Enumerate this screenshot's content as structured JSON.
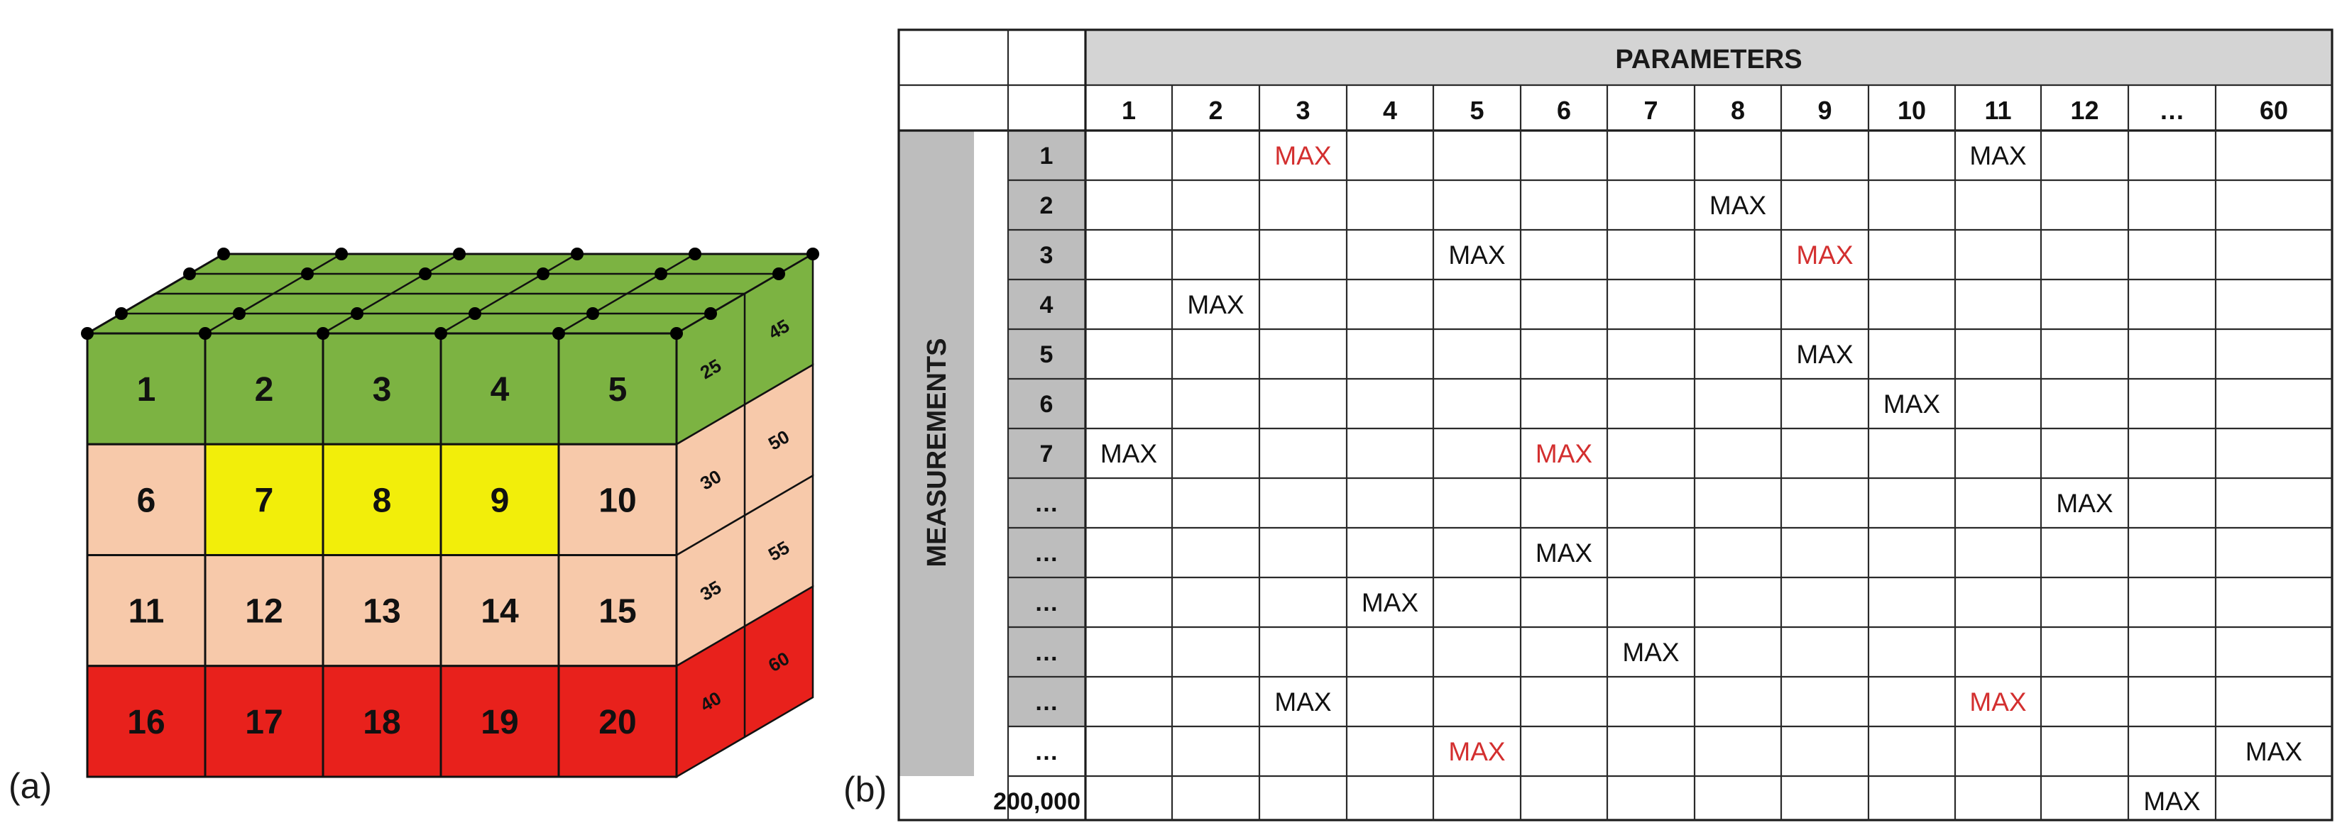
{
  "panel_a": {
    "label": "(a)",
    "front_rows": [
      {
        "cells": [
          "1",
          "2",
          "3",
          "4",
          "5"
        ],
        "colors": [
          "#7cb342",
          "#7cb342",
          "#7cb342",
          "#7cb342",
          "#7cb342"
        ]
      },
      {
        "cells": [
          "6",
          "7",
          "8",
          "9",
          "10"
        ],
        "colors": [
          "#f7c9aa",
          "#f2ee0a",
          "#f2ee0a",
          "#f2ee0a",
          "#f7c9aa"
        ]
      },
      {
        "cells": [
          "11",
          "12",
          "13",
          "14",
          "15"
        ],
        "colors": [
          "#f7c9aa",
          "#f7c9aa",
          "#f7c9aa",
          "#f7c9aa",
          "#f7c9aa"
        ]
      },
      {
        "cells": [
          "16",
          "17",
          "18",
          "19",
          "20"
        ],
        "colors": [
          "#e8211c",
          "#e8211c",
          "#e8211c",
          "#e8211c",
          "#e8211c"
        ]
      }
    ],
    "side_rows": [
      {
        "cells": [
          "25",
          "45"
        ],
        "color": "#7cb342"
      },
      {
        "cells": [
          "30",
          "50"
        ],
        "color": "#f7c9aa"
      },
      {
        "cells": [
          "35",
          "55"
        ],
        "color": "#f7c9aa"
      },
      {
        "cells": [
          "40",
          "60"
        ],
        "color": "#e8211c"
      }
    ],
    "top_color": "#7cb342",
    "node_color": "#000000"
  },
  "panel_b": {
    "label": "(b)",
    "title": "PARAMETERS",
    "row_axis_label": "MEASUREMENTS",
    "params": [
      "1",
      "2",
      "3",
      "4",
      "5",
      "6",
      "7",
      "8",
      "9",
      "10",
      "11",
      "12",
      "…",
      "60"
    ],
    "rows": [
      "1",
      "2",
      "3",
      "4",
      "5",
      "6",
      "7",
      "…",
      "…",
      "…",
      "…",
      "…",
      "…",
      "200,000"
    ],
    "max_label": "MAX",
    "cells": [
      {
        "row": 0,
        "col": 2,
        "text": "MAX",
        "color": "#d32f2f"
      },
      {
        "row": 0,
        "col": 10,
        "text": "MAX",
        "color": "#111111"
      },
      {
        "row": 1,
        "col": 7,
        "text": "MAX",
        "color": "#111111"
      },
      {
        "row": 2,
        "col": 4,
        "text": "MAX",
        "color": "#111111"
      },
      {
        "row": 2,
        "col": 8,
        "text": "MAX",
        "color": "#d32f2f"
      },
      {
        "row": 3,
        "col": 1,
        "text": "MAX",
        "color": "#111111"
      },
      {
        "row": 4,
        "col": 8,
        "text": "MAX",
        "color": "#111111"
      },
      {
        "row": 5,
        "col": 9,
        "text": "MAX",
        "color": "#111111"
      },
      {
        "row": 6,
        "col": 0,
        "text": "MAX",
        "color": "#111111"
      },
      {
        "row": 6,
        "col": 5,
        "text": "MAX",
        "color": "#d32f2f"
      },
      {
        "row": 7,
        "col": 11,
        "text": "MAX",
        "color": "#111111"
      },
      {
        "row": 8,
        "col": 5,
        "text": "MAX",
        "color": "#111111"
      },
      {
        "row": 9,
        "col": 3,
        "text": "MAX",
        "color": "#111111"
      },
      {
        "row": 10,
        "col": 6,
        "text": "MAX",
        "color": "#111111"
      },
      {
        "row": 11,
        "col": 2,
        "text": "MAX",
        "color": "#111111"
      },
      {
        "row": 11,
        "col": 10,
        "text": "MAX",
        "color": "#d32f2f"
      },
      {
        "row": 12,
        "col": 4,
        "text": "MAX",
        "color": "#d32f2f"
      },
      {
        "row": 12,
        "col": 13,
        "text": "MAX",
        "color": "#111111"
      },
      {
        "row": 13,
        "col": 12,
        "text": "MAX",
        "color": "#111111"
      }
    ]
  }
}
